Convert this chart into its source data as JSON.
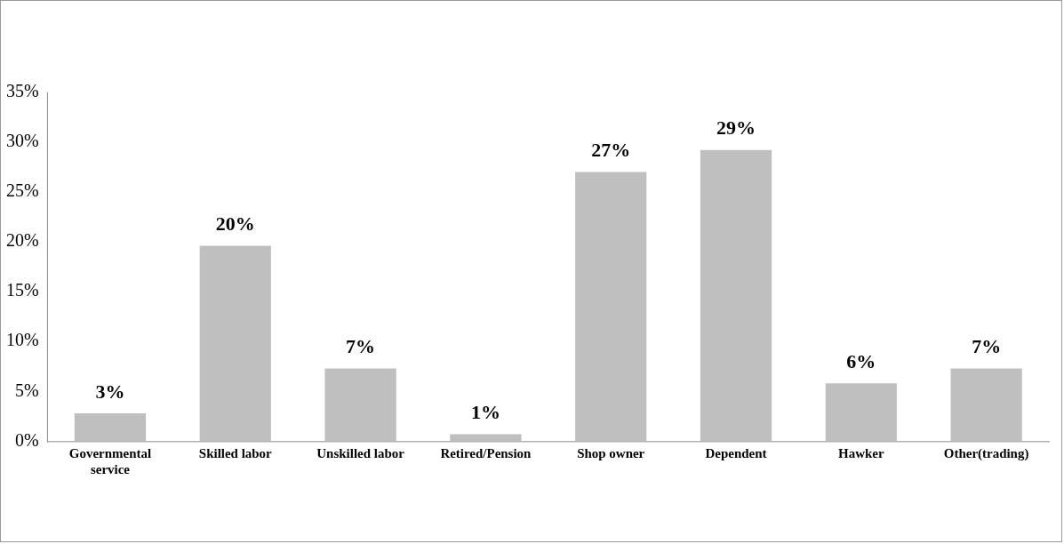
{
  "chart_data": {
    "type": "bar",
    "categories": [
      "Governmental service",
      "Skilled labor",
      "Unskilled labor",
      "Retired/Pension",
      "Shop owner",
      "Dependent",
      "Hawker",
      "Other(trading)"
    ],
    "values": [
      2.8,
      19.6,
      7.3,
      0.7,
      27,
      29.2,
      5.8,
      7.3
    ],
    "value_labels": [
      "3%",
      "20%",
      "7%",
      "1%",
      "27%",
      "29%",
      "6%",
      "7%"
    ],
    "color": "#bfbfbf",
    "ylim": [
      0,
      35
    ],
    "yticks": [
      {
        "value": 0,
        "label": "0%"
      },
      {
        "value": 5,
        "label": "5%"
      },
      {
        "value": 10,
        "label": "10%"
      },
      {
        "value": 15,
        "label": "15%"
      },
      {
        "value": 20,
        "label": "20%"
      },
      {
        "value": 25,
        "label": "25%"
      },
      {
        "value": 30,
        "label": "30%"
      },
      {
        "value": 35,
        "label": "35%"
      }
    ],
    "grid": false,
    "legend": false
  }
}
